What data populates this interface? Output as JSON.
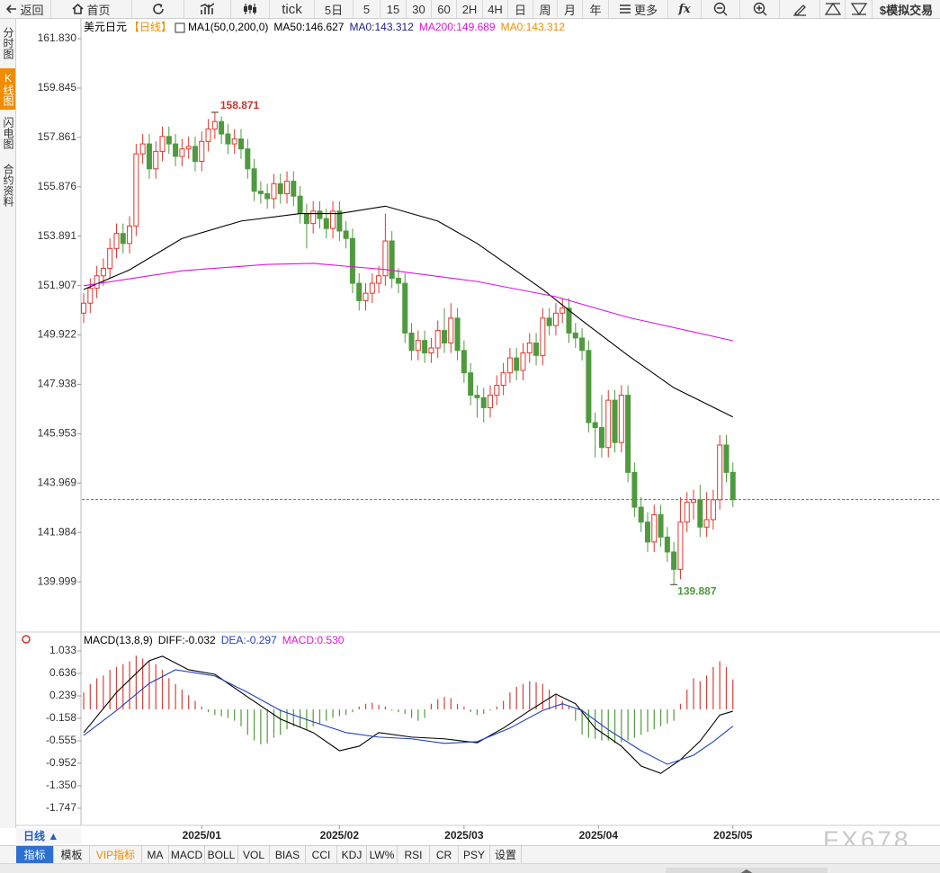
{
  "toolbar": [
    "返回",
    "首页",
    "tick",
    "5日",
    "5",
    "15",
    "30",
    "60",
    "2H",
    "4H",
    "日",
    "周",
    "月",
    "年",
    "更多",
    "fx",
    "$模拟交易"
  ],
  "side_tabs": [
    "分时图",
    "K线图",
    "闪电图",
    "合约资料"
  ],
  "period_label": "日线 ▲",
  "indicator_tabs": [
    "指标",
    "模板",
    "VIP指标",
    "MA",
    "MACD",
    "BOLL",
    "VOL",
    "BIAS",
    "CCI",
    "KDJ",
    "LW%",
    "RSI",
    "CR",
    "PSY",
    "设置"
  ],
  "watermark": "FX678",
  "chart_data": [
    {
      "type": "candlestick",
      "symbol": "美元日元",
      "period": "【日线】",
      "indicator": "MA1(50,0,200,0)",
      "up_color": "#e2362f",
      "down_color": "#4f9a3e",
      "open": [
        150.8,
        151.2,
        151.8,
        152.3,
        152.6,
        153.4,
        154.0,
        153.6,
        154.3,
        157.2,
        157.6,
        156.6,
        157.3,
        157.9,
        157.6,
        157.1,
        157.4,
        157.5,
        156.9,
        157.7,
        158.2,
        158.5,
        158.0,
        157.6,
        157.8,
        157.4,
        156.6,
        155.7,
        155.6,
        155.4,
        156.0,
        155.6,
        156.1,
        155.5,
        154.8,
        154.4,
        154.9,
        154.6,
        154.2,
        154.9,
        154.1,
        153.8,
        152.0,
        151.3,
        151.6,
        152.0,
        152.3,
        153.7,
        152.2,
        152.0,
        150.0,
        149.3,
        149.7,
        149.2,
        149.4,
        150.1,
        149.6,
        150.6,
        149.3,
        148.4,
        147.5,
        147.4,
        147.0,
        147.5,
        147.9,
        148.4,
        149.0,
        148.5,
        149.2,
        149.6,
        149.1,
        150.6,
        150.3,
        150.8,
        151.0,
        150.0,
        149.8,
        149.3,
        146.4,
        146.2,
        145.4,
        147.3,
        145.6,
        147.5,
        144.4,
        143.0,
        142.4,
        141.6,
        142.7,
        141.8,
        141.2,
        140.5,
        142.4,
        143.2,
        143.3,
        142.2,
        142.5,
        143.3,
        145.5,
        144.4
      ],
      "high": [
        151.6,
        152.2,
        152.7,
        153.0,
        153.8,
        154.4,
        154.4,
        154.7,
        157.6,
        158.0,
        158.0,
        157.7,
        158.3,
        158.3,
        158.0,
        157.8,
        157.9,
        157.9,
        158.1,
        158.6,
        158.871,
        158.7,
        158.4,
        158.2,
        158.2,
        157.8,
        157.0,
        156.1,
        156.0,
        156.4,
        156.4,
        156.5,
        156.5,
        155.9,
        155.2,
        155.3,
        155.3,
        155.0,
        155.3,
        155.3,
        154.5,
        154.2,
        152.4,
        152.0,
        152.4,
        152.7,
        154.8,
        154.1,
        152.6,
        152.4,
        150.4,
        150.1,
        150.1,
        149.8,
        150.5,
        151.0,
        151.2,
        151.0,
        149.7,
        148.8,
        147.9,
        147.8,
        147.9,
        148.3,
        148.8,
        149.4,
        149.4,
        149.6,
        150.0,
        150.0,
        151.0,
        151.0,
        151.2,
        151.4,
        151.4,
        150.4,
        150.2,
        149.7,
        146.8,
        147.5,
        147.7,
        147.7,
        147.9,
        147.9,
        144.8,
        143.4,
        142.8,
        143.1,
        143.1,
        142.2,
        141.6,
        143.4,
        143.6,
        143.7,
        143.9,
        143.6,
        143.7,
        145.9,
        145.9,
        144.8
      ],
      "low": [
        150.4,
        150.8,
        151.4,
        151.9,
        152.2,
        153.0,
        153.2,
        153.2,
        153.9,
        156.8,
        156.2,
        156.2,
        156.9,
        157.2,
        156.7,
        156.7,
        157.0,
        156.5,
        156.5,
        157.3,
        157.8,
        157.6,
        157.2,
        157.2,
        157.0,
        156.2,
        155.3,
        155.2,
        155.0,
        155.0,
        155.2,
        155.2,
        155.1,
        154.4,
        153.4,
        154.0,
        154.2,
        153.8,
        153.8,
        153.7,
        153.4,
        151.6,
        150.9,
        150.9,
        151.2,
        151.6,
        151.9,
        151.8,
        151.6,
        149.6,
        148.9,
        148.9,
        148.8,
        148.8,
        149.0,
        149.2,
        149.2,
        148.9,
        148.0,
        147.1,
        146.6,
        146.4,
        146.6,
        147.1,
        147.5,
        148.0,
        148.1,
        148.1,
        148.8,
        148.7,
        148.7,
        149.9,
        149.9,
        150.4,
        149.6,
        149.4,
        148.9,
        146.0,
        145.0,
        145.0,
        145.0,
        145.2,
        145.2,
        144.0,
        142.6,
        142.0,
        141.2,
        141.2,
        141.4,
        140.8,
        139.887,
        140.1,
        142.0,
        142.5,
        141.8,
        141.8,
        142.1,
        142.9,
        144.0,
        143.0
      ],
      "close": [
        151.2,
        151.8,
        152.3,
        152.6,
        153.4,
        154.0,
        153.6,
        154.3,
        157.2,
        157.6,
        156.6,
        157.3,
        157.9,
        157.6,
        157.1,
        157.4,
        157.5,
        156.9,
        157.7,
        158.2,
        158.5,
        158.0,
        157.6,
        157.8,
        157.4,
        156.6,
        155.7,
        155.6,
        155.4,
        156.0,
        155.6,
        156.1,
        155.5,
        154.8,
        154.4,
        154.9,
        154.6,
        154.2,
        154.9,
        154.1,
        153.8,
        152.0,
        151.3,
        151.6,
        152.0,
        152.3,
        153.7,
        152.2,
        152.0,
        150.0,
        149.3,
        149.7,
        149.2,
        149.4,
        150.1,
        149.6,
        150.6,
        149.3,
        148.4,
        147.5,
        147.4,
        147.0,
        147.5,
        147.9,
        148.4,
        149.0,
        148.5,
        149.2,
        149.6,
        149.1,
        150.6,
        150.3,
        150.8,
        151.0,
        150.0,
        149.8,
        149.3,
        146.4,
        146.2,
        145.4,
        147.3,
        145.6,
        147.5,
        144.4,
        143.0,
        142.4,
        141.6,
        142.7,
        141.8,
        141.2,
        140.5,
        142.4,
        143.2,
        143.3,
        142.2,
        142.5,
        143.3,
        145.5,
        144.4,
        143.3
      ],
      "series": [
        {
          "name": "MA50:146.627",
          "color": "#000000",
          "x": [
            0,
            7,
            15,
            24,
            33,
            39,
            46,
            54,
            60,
            70,
            76,
            83,
            90,
            99
          ],
          "values": [
            151.75,
            152.54,
            153.8,
            154.5,
            154.8,
            154.8,
            155.1,
            154.5,
            153.6,
            151.75,
            150.5,
            149.1,
            147.8,
            146.627
          ]
        },
        {
          "name": "MA200:149.689",
          "color": "#dc14dc",
          "x": [
            0,
            15,
            28,
            35,
            46,
            60,
            72,
            83,
            99
          ],
          "values": [
            151.9,
            152.5,
            152.76,
            152.8,
            152.55,
            152.07,
            151.46,
            150.63,
            149.689
          ]
        }
      ],
      "extra_legend": [
        {
          "text": "MA0:143.312",
          "color": "#1c1c8c"
        },
        {
          "text": "MA0:143.312",
          "color": "#f08c00"
        }
      ],
      "last_price": 143.312,
      "last_price_color": "#3b82d6",
      "xlim": [
        -0.5,
        99.5
      ],
      "ylim": [
        138.09,
        162.59
      ],
      "yticks": [
        {
          "value": 161.83,
          "label": "161.830"
        },
        159.845,
        157.861,
        155.876,
        153.891,
        151.907,
        149.922,
        147.938,
        145.953,
        143.969,
        141.984,
        139.999
      ]
    },
    {
      "type": "macd",
      "title": "MACD(13,8,9)",
      "series": [
        {
          "name": "DIFF:-0.032",
          "color": "#000000",
          "x": [
            0,
            5,
            10,
            12,
            16,
            20,
            25,
            30,
            35,
            39,
            42,
            45,
            50,
            55,
            60,
            64,
            68,
            72,
            75,
            78,
            82,
            85,
            88,
            91,
            94,
            97,
            99
          ],
          "values": [
            -0.41,
            0.3,
            0.86,
            0.94,
            0.7,
            0.62,
            0.22,
            -0.17,
            -0.41,
            -0.73,
            -0.65,
            -0.41,
            -0.49,
            -0.52,
            -0.59,
            -0.33,
            -0.02,
            0.27,
            0.1,
            -0.33,
            -0.65,
            -1.0,
            -1.13,
            -0.89,
            -0.56,
            -0.1,
            -0.032
          ]
        },
        {
          "name": "DEA:-0.297",
          "color": "#1f3fbf",
          "x": [
            0,
            5,
            10,
            14,
            20,
            25,
            30,
            35,
            40,
            45,
            50,
            55,
            60,
            65,
            70,
            73,
            76,
            80,
            85,
            89,
            93,
            96,
            99
          ],
          "values": [
            -0.46,
            -0.02,
            0.46,
            0.7,
            0.59,
            0.3,
            -0.02,
            -0.22,
            -0.41,
            -0.49,
            -0.52,
            -0.6,
            -0.57,
            -0.33,
            -0.02,
            0.1,
            -0.02,
            -0.36,
            -0.73,
            -0.97,
            -0.81,
            -0.57,
            -0.297
          ]
        }
      ],
      "histogram": {
        "name": "MACD:0.530",
        "color": "#dc14dc",
        "up_color": "#d9403a",
        "down_color": "#4f9a3e",
        "values": [
          0.3,
          0.45,
          0.55,
          0.6,
          0.7,
          0.75,
          0.8,
          0.85,
          0.95,
          0.9,
          0.85,
          0.8,
          0.7,
          0.55,
          0.45,
          0.35,
          0.25,
          0.15,
          0.05,
          -0.05,
          -0.1,
          -0.12,
          -0.15,
          -0.2,
          -0.3,
          -0.45,
          -0.55,
          -0.62,
          -0.6,
          -0.5,
          -0.45,
          -0.35,
          -0.3,
          -0.32,
          -0.35,
          -0.3,
          -0.25,
          -0.2,
          -0.15,
          -0.12,
          -0.1,
          -0.05,
          0.05,
          0.1,
          0.12,
          0.08,
          0.05,
          -0.02,
          -0.05,
          -0.08,
          -0.15,
          -0.2,
          -0.15,
          0.1,
          0.18,
          0.22,
          0.2,
          0.1,
          0.05,
          -0.05,
          -0.1,
          -0.08,
          -0.02,
          0.05,
          0.15,
          0.3,
          0.4,
          0.45,
          0.5,
          0.48,
          0.45,
          0.35,
          0.25,
          0.15,
          0.05,
          -0.2,
          -0.45,
          -0.5,
          -0.52,
          -0.55,
          -0.55,
          -0.6,
          -0.58,
          -0.55,
          -0.5,
          -0.45,
          -0.4,
          -0.35,
          -0.3,
          -0.25,
          -0.2,
          0.1,
          0.35,
          0.55,
          0.5,
          0.6,
          0.75,
          0.85,
          0.75,
          0.53
        ]
      },
      "xlim": [
        -0.5,
        99.5
      ],
      "xticks": [
        {
          "value": 18,
          "label": "2025/01"
        },
        {
          "value": 39,
          "label": "2025/02"
        },
        {
          "value": 58,
          "label": "2025/03"
        },
        {
          "value": 78.5,
          "label": "2025/04"
        },
        {
          "value": 99,
          "label": "2025/05"
        }
      ],
      "ylim": [
        -2.049,
        1.335
      ],
      "yticks": [
        1.033,
        0.636,
        0.239,
        -0.158,
        -0.555,
        -0.952,
        {
          "value": -1.35,
          "label": "-1.350"
        },
        -1.747
      ]
    }
  ]
}
